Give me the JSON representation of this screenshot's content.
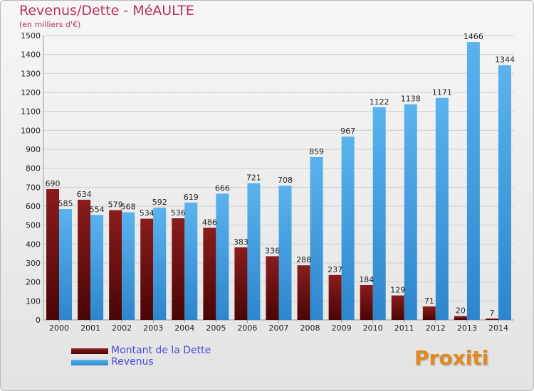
{
  "header": {
    "title": "Revenus/Dette - MéAULTE",
    "subtitle": "(en milliers d'€)"
  },
  "legend": [
    {
      "label": "Montant de la Dette",
      "color": "#7a1313"
    },
    {
      "label": "Revenus",
      "color": "#4aa3e6"
    }
  ],
  "logo": {
    "text": "Proxiti"
  },
  "colors": {
    "dette_top": "#8a1c1c",
    "dette_bottom": "#4a0505",
    "revenus_top": "#5ab2ee",
    "revenus_bottom": "#2d86cc"
  },
  "chart_data": {
    "type": "bar",
    "title": "Revenus/Dette - MéAULTE",
    "subtitle": "(en milliers d'€)",
    "xlabel": "",
    "ylabel": "",
    "ylim": [
      0,
      1500
    ],
    "yticks": [
      0,
      100,
      200,
      300,
      400,
      500,
      600,
      700,
      800,
      900,
      1000,
      1100,
      1200,
      1300,
      1400,
      1500
    ],
    "grid": true,
    "legend_position": "bottom-left",
    "categories": [
      "2000",
      "2001",
      "2002",
      "2003",
      "2004",
      "2005",
      "2006",
      "2007",
      "2008",
      "2009",
      "2010",
      "2011",
      "2012",
      "2013",
      "2014"
    ],
    "series": [
      {
        "name": "Montant de la Dette",
        "values": [
          690,
          634,
          579,
          534,
          536,
          486,
          383,
          336,
          288,
          237,
          184,
          129,
          71,
          20,
          7
        ]
      },
      {
        "name": "Revenus",
        "values": [
          585,
          554,
          568,
          592,
          619,
          666,
          721,
          708,
          859,
          967,
          1122,
          1138,
          1171,
          1466,
          1344
        ]
      }
    ]
  }
}
